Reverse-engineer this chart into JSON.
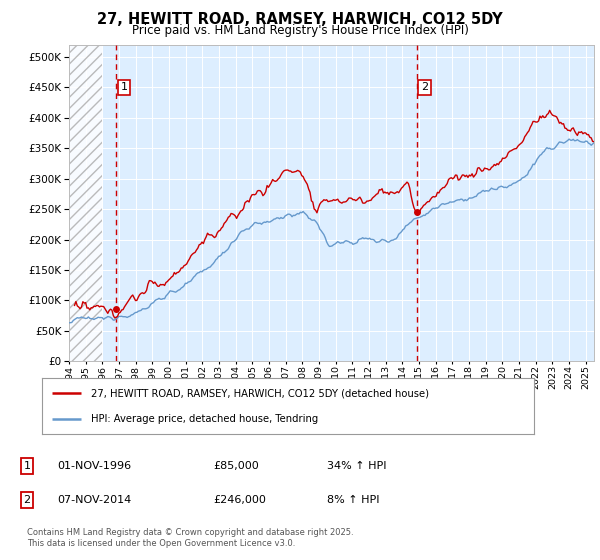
{
  "title": "27, HEWITT ROAD, RAMSEY, HARWICH, CO12 5DY",
  "subtitle": "Price paid vs. HM Land Registry's House Price Index (HPI)",
  "legend_label_red": "27, HEWITT ROAD, RAMSEY, HARWICH, CO12 5DY (detached house)",
  "legend_label_blue": "HPI: Average price, detached house, Tendring",
  "annotation1_label": "1",
  "annotation1_date": "01-NOV-1996",
  "annotation1_price": "£85,000",
  "annotation1_hpi": "34% ↑ HPI",
  "annotation2_label": "2",
  "annotation2_date": "07-NOV-2014",
  "annotation2_price": "£246,000",
  "annotation2_hpi": "8% ↑ HPI",
  "footnote": "Contains HM Land Registry data © Crown copyright and database right 2025.\nThis data is licensed under the Open Government Licence v3.0.",
  "color_red": "#cc0000",
  "color_blue": "#6699cc",
  "color_annotation_box": "#cc0000",
  "background_color": "#ddeeff",
  "ylim": [
    0,
    520000
  ],
  "yticks": [
    0,
    50000,
    100000,
    150000,
    200000,
    250000,
    300000,
    350000,
    400000,
    450000,
    500000
  ],
  "x_start_year": 1994,
  "x_end_year": 2025,
  "sale1_year": 1996.83,
  "sale1_price": 85000,
  "sale2_year": 2014.85,
  "sale2_price": 246000
}
